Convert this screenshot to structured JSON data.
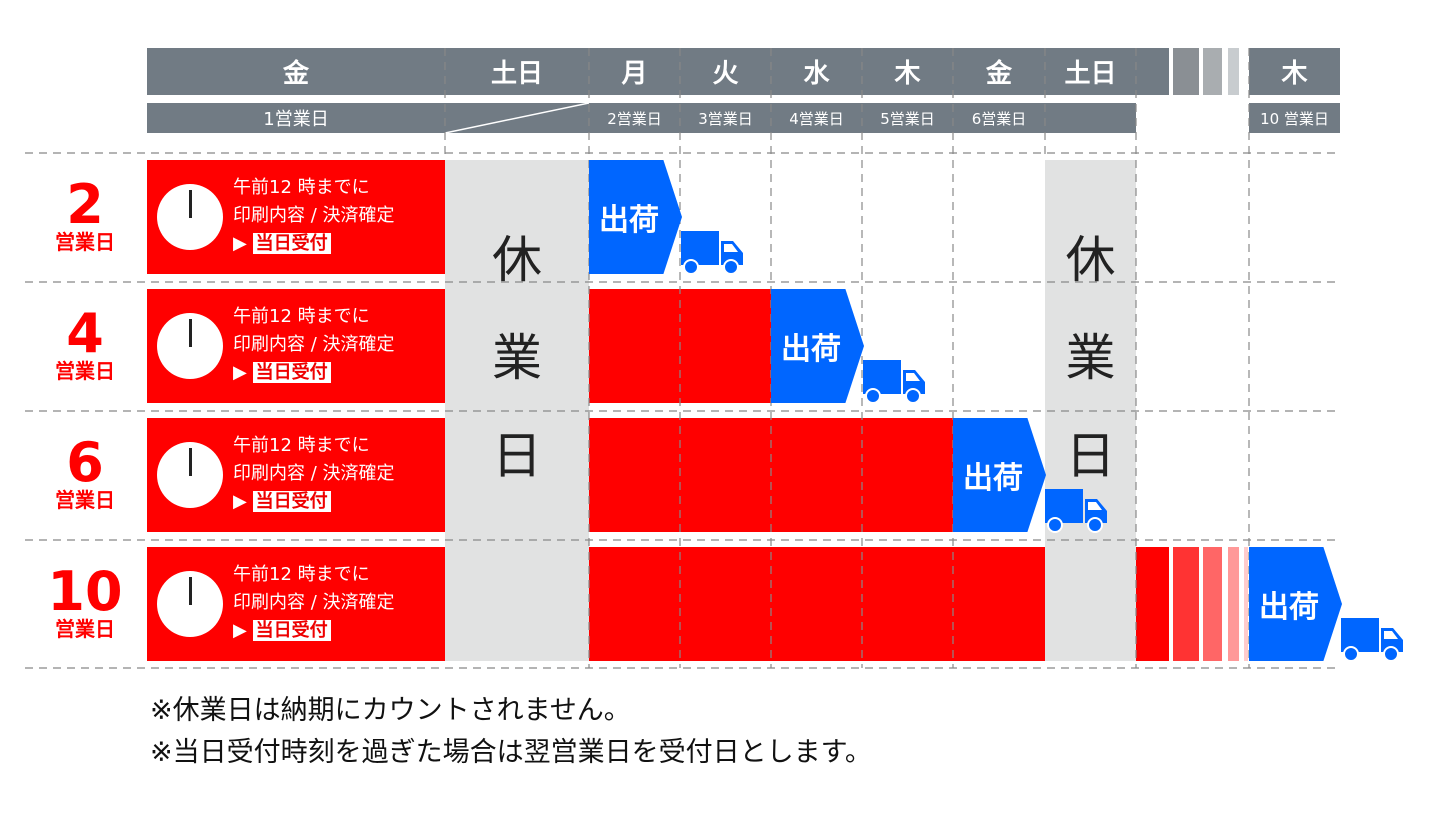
{
  "header": {
    "days": [
      "金",
      "土日",
      "月",
      "火",
      "水",
      "木",
      "金",
      "土日",
      "木"
    ],
    "business_days": [
      "1営業日",
      "2営業日",
      "3営業日",
      "4営業日",
      "5営業日",
      "6営業日",
      "10 営業日"
    ]
  },
  "rows": [
    {
      "num": "2",
      "unit": "営業日"
    },
    {
      "num": "4",
      "unit": "営業日"
    },
    {
      "num": "6",
      "unit": "営業日"
    },
    {
      "num": "10",
      "unit": "営業日"
    }
  ],
  "order": {
    "line1": "午前12 時までに",
    "line2": "印刷内容 / 決済確定",
    "arrow": "▶",
    "badge": "当日受付"
  },
  "holiday": {
    "chars": [
      "休",
      "業",
      "日"
    ]
  },
  "ship_label": "出荷",
  "notes": [
    "※休業日は納期にカウントされません。",
    "※当日受付時刻を過ぎた場合は翌営業日を受付日とします。"
  ],
  "colors": {
    "red": "#ff0000",
    "blue": "#0066ff",
    "header_gray": "#717b84",
    "holiday_gray": "#e1e2e2"
  }
}
